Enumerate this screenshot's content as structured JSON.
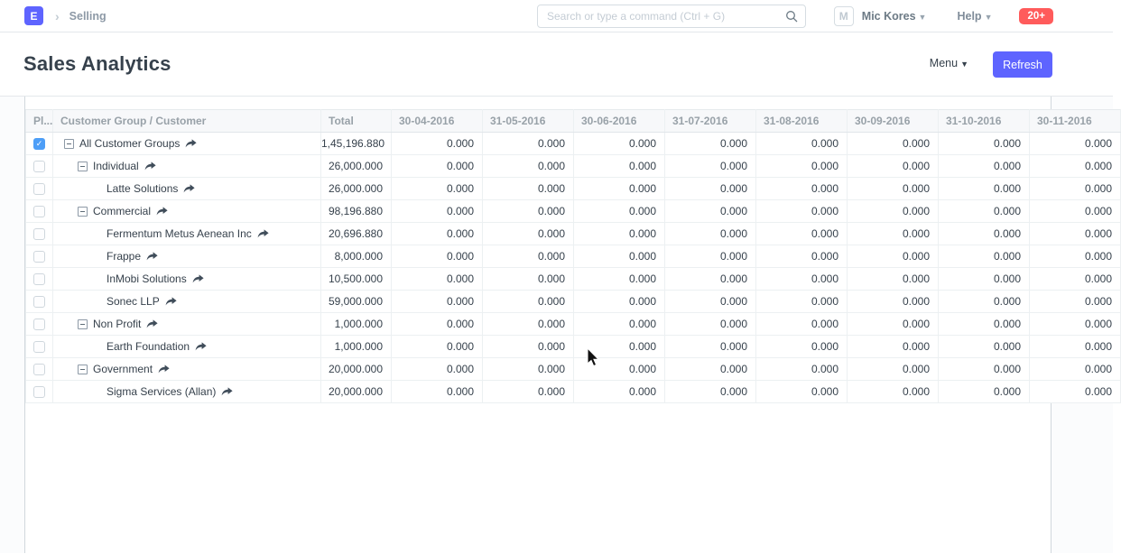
{
  "navbar": {
    "logo_letter": "E",
    "breadcrumb": "Selling",
    "search_placeholder": "Search or type a command (Ctrl + G)",
    "avatar_letter": "M",
    "user_name": "Mic Kores",
    "help_label": "Help",
    "notification_count": "20+"
  },
  "page": {
    "title": "Sales Analytics",
    "menu_label": "Menu",
    "refresh_label": "Refresh"
  },
  "table": {
    "check_col_header": "Pl...",
    "name_col_header": "Customer Group / Customer",
    "total_col_header": "Total",
    "month_col_headers": [
      "30-04-2016",
      "31-05-2016",
      "30-06-2016",
      "31-07-2016",
      "31-08-2016",
      "30-09-2016",
      "31-10-2016",
      "30-11-2016"
    ],
    "month_cell_value": "0.000",
    "rows": [
      {
        "label": "All Customer Groups",
        "level": 0,
        "has_toggle": true,
        "checked": true,
        "total": "1,45,196.880"
      },
      {
        "label": "Individual",
        "level": 1,
        "has_toggle": true,
        "checked": false,
        "total": "26,000.000"
      },
      {
        "label": "Latte Solutions",
        "level": 2,
        "has_toggle": false,
        "checked": false,
        "total": "26,000.000"
      },
      {
        "label": "Commercial",
        "level": 1,
        "has_toggle": true,
        "checked": false,
        "total": "98,196.880"
      },
      {
        "label": "Fermentum Metus Aenean Inc",
        "level": 2,
        "has_toggle": false,
        "checked": false,
        "total": "20,696.880"
      },
      {
        "label": "Frappe",
        "level": 2,
        "has_toggle": false,
        "checked": false,
        "total": "8,000.000"
      },
      {
        "label": "InMobi Solutions",
        "level": 2,
        "has_toggle": false,
        "checked": false,
        "total": "10,500.000"
      },
      {
        "label": "Sonec LLP",
        "level": 2,
        "has_toggle": false,
        "checked": false,
        "total": "59,000.000"
      },
      {
        "label": "Non Profit",
        "level": 1,
        "has_toggle": true,
        "checked": false,
        "total": "1,000.000"
      },
      {
        "label": "Earth Foundation",
        "level": 2,
        "has_toggle": false,
        "checked": false,
        "total": "1,000.000"
      },
      {
        "label": "Government",
        "level": 1,
        "has_toggle": true,
        "checked": false,
        "total": "20,000.000"
      },
      {
        "label": "Sigma Services (Allan)",
        "level": 2,
        "has_toggle": false,
        "checked": false,
        "total": "20,000.000"
      }
    ]
  },
  "colors": {
    "brand": "#5e64ff",
    "checked_checkbox": "#4d9ef7",
    "notification_badge": "#ff5b5b",
    "header_text": "#98a1a8",
    "body_text": "#36414c"
  }
}
